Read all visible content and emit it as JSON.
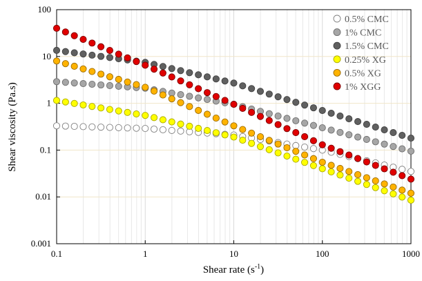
{
  "chart_data": {
    "type": "scatter",
    "xlabel": "Shear rate (s",
    "xlabel_sup": "-1",
    "xlabel_close": ")",
    "ylabel": "Shear viscosity (Pa.s)",
    "xscale": "log",
    "yscale": "log",
    "xlim": [
      0.1,
      1000
    ],
    "ylim": [
      0.001,
      100
    ],
    "x_ticks": [
      0.1,
      1,
      10,
      100,
      1000
    ],
    "x_tick_labels": [
      "0.1",
      "1",
      "10",
      "100",
      "1000"
    ],
    "y_ticks": [
      0.001,
      0.01,
      0.1,
      1,
      10,
      100
    ],
    "y_tick_labels": [
      "0.001",
      "0.01",
      "0.1",
      "1",
      "10",
      "100"
    ],
    "grid": true,
    "legend_position": "top-right",
    "points_per_decade": 10,
    "series": [
      {
        "name": "0.5% CMC",
        "color": "#ffffff",
        "edge": "#7f7f7f",
        "x": [
          0.1,
          1,
          10,
          100,
          1000
        ],
        "y": [
          0.33,
          0.29,
          0.21,
          0.1,
          0.035
        ]
      },
      {
        "name": "1% CMC",
        "color": "#a6a6a6",
        "edge": "#6e6e6e",
        "x": [
          0.1,
          1,
          10,
          100,
          1000
        ],
        "y": [
          2.9,
          2.1,
          0.95,
          0.3,
          0.095
        ]
      },
      {
        "name": "1.5% CMC",
        "color": "#606060",
        "edge": "#404040",
        "x": [
          0.1,
          1,
          10,
          100,
          1000
        ],
        "y": [
          13.5,
          7.5,
          2.7,
          0.7,
          0.18
        ]
      },
      {
        "name": "0.25% XG",
        "color": "#ffff00",
        "edge": "#a8a800",
        "x": [
          0.1,
          1,
          10,
          100,
          1000
        ],
        "y": [
          1.15,
          0.55,
          0.19,
          0.04,
          0.0085
        ]
      },
      {
        "name": "0.5% XG",
        "color": "#ffb300",
        "edge": "#9a6a00",
        "x": [
          0.1,
          1,
          10,
          100,
          1000
        ],
        "y": [
          8.0,
          2.2,
          0.33,
          0.055,
          0.012
        ]
      },
      {
        "name": "1% XGG",
        "color": "#e00000",
        "edge": "#7a0000",
        "x": [
          0.1,
          1,
          10,
          100,
          1000
        ],
        "y": [
          40,
          6.5,
          0.95,
          0.13,
          0.024
        ]
      }
    ]
  }
}
